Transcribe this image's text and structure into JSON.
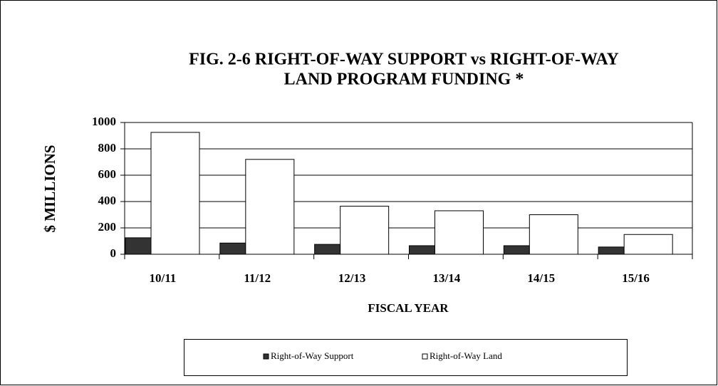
{
  "chart_data": {
    "type": "bar",
    "title": [
      "FIG. 2-6  RIGHT-OF-WAY SUPPORT vs RIGHT-OF-WAY",
      "LAND PROGRAM FUNDING *"
    ],
    "x_label": "FISCAL YEAR",
    "y_label": "$ MILLIONS",
    "categories": [
      "10/11",
      "11/12",
      "12/13",
      "13/14",
      "14/15",
      "15/16"
    ],
    "series": [
      {
        "name": "Right-of-Way Support",
        "color": "#333333",
        "values": [
          125,
          85,
          75,
          65,
          65,
          55
        ]
      },
      {
        "name": "Right-of-Way Land",
        "color": "#ffffff",
        "values": [
          925,
          720,
          365,
          330,
          300,
          150
        ]
      }
    ],
    "ylim": [
      0,
      1000
    ],
    "yticks": [
      0,
      200,
      400,
      600,
      800,
      1000
    ],
    "grid": true,
    "legend": "bottom"
  }
}
